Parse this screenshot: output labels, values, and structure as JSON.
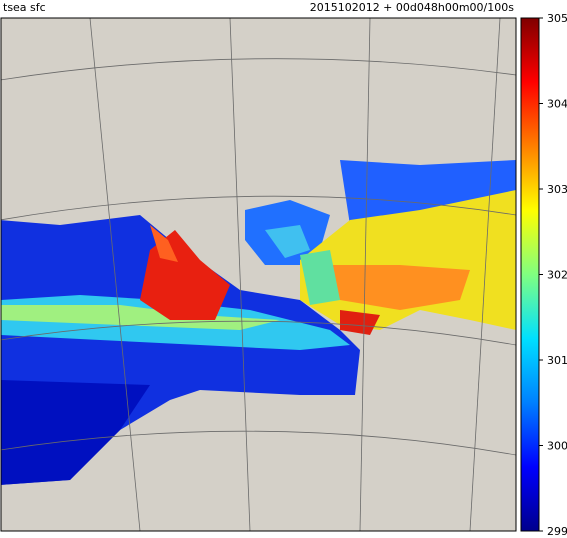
{
  "header": {
    "left": "tsea sfc",
    "right": "2015102012 + 00d048h00m00/100s"
  },
  "colorbar": {
    "range": [
      299,
      305
    ],
    "ticks": [
      299,
      300,
      301,
      302,
      303,
      304,
      305
    ],
    "colors": [
      "#00008c",
      "#0000ff",
      "#0080ff",
      "#00e0ff",
      "#80ff80",
      "#ffff00",
      "#ff8000",
      "#ff0000",
      "#800000"
    ]
  }
}
